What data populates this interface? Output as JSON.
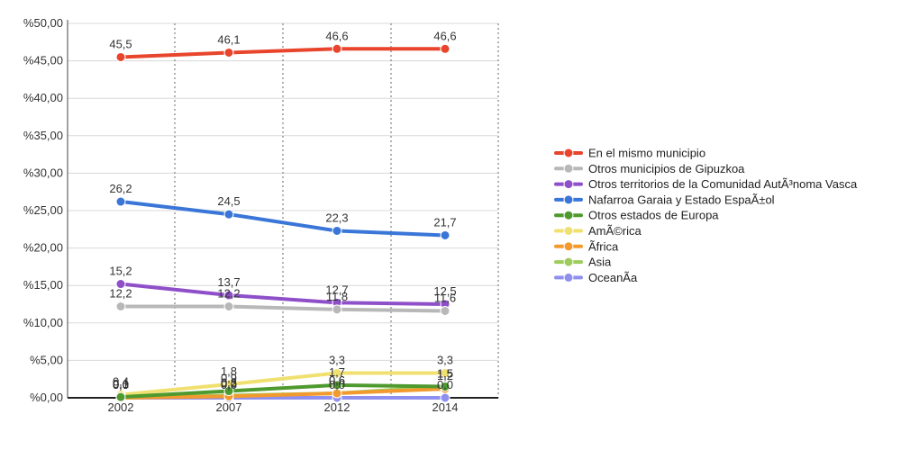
{
  "chart_data": {
    "type": "line",
    "title": "",
    "xlabel": "",
    "ylabel": "",
    "x": [
      "2002",
      "2007",
      "2012",
      "2014"
    ],
    "ylim": [
      0,
      50
    ],
    "yticks": [
      "%0,00",
      "%5,00",
      "%10,00",
      "%15,00",
      "%20,00",
      "%25,00",
      "%30,00",
      "%35,00",
      "%40,00",
      "%45,00",
      "%50,00"
    ],
    "grid": true,
    "legend_position": "right",
    "series": [
      {
        "name": "En el mismo municipio",
        "color": "#e8452c",
        "values": [
          45.5,
          46.1,
          46.6,
          46.6
        ],
        "labels": [
          "45,5",
          "46,1",
          "46,6",
          "46,6"
        ]
      },
      {
        "name": "Otros municipios de Gipuzkoa",
        "color": "#b8b8b8",
        "values": [
          12.2,
          12.2,
          11.8,
          11.6
        ],
        "labels": [
          "12,2",
          "12,2",
          "11,8",
          "11,6"
        ]
      },
      {
        "name": "Otros territorios de la Comunidad AutÃ³noma Vasca",
        "color": "#8e4fc9",
        "values": [
          15.2,
          13.7,
          12.7,
          12.5
        ],
        "labels": [
          "15,2",
          "13,7",
          "12,7",
          "12,5"
        ]
      },
      {
        "name": "Nafarroa Garaia y Estado EspaÃ±ol",
        "color": "#3a76d8",
        "values": [
          26.2,
          24.5,
          22.3,
          21.7
        ],
        "labels": [
          "26,2",
          "24,5",
          "22,3",
          "21,7"
        ]
      },
      {
        "name": "Otros estados de Europa",
        "color": "#4e9a2f",
        "values": [
          0.1,
          0.9,
          1.7,
          1.5
        ],
        "labels": [
          "0,1",
          "0,9",
          "1,7",
          "1,5"
        ]
      },
      {
        "name": "AmÃ©rica",
        "color": "#f0e070",
        "values": [
          0.4,
          1.8,
          3.3,
          3.3
        ],
        "labels": [
          "0,4",
          "1,8",
          "3,3",
          "3,3"
        ]
      },
      {
        "name": "Ãfrica",
        "color": "#f29a2e",
        "values": [
          0.0,
          0.2,
          0.6,
          1.2
        ],
        "labels": [
          "0,0",
          "0,2",
          "0,6",
          "1,2"
        ]
      },
      {
        "name": "Asia",
        "color": "#9ccc5a",
        "values": [
          0.0,
          0.3,
          0.6,
          1.5
        ],
        "labels": [
          "0,0",
          "0,3",
          "0,6",
          "1,5"
        ]
      },
      {
        "name": "OceanÃ­a",
        "color": "#8f8ff0",
        "values": [
          0.0,
          0.0,
          0.0,
          0.0
        ],
        "labels": [
          "0,0",
          "0,0",
          "0,0",
          "0,0"
        ]
      }
    ]
  }
}
